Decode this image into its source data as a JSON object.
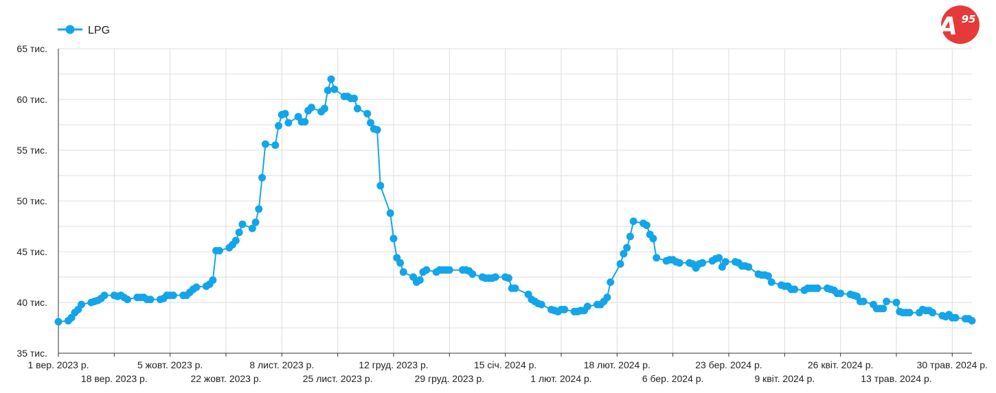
{
  "chart_data": {
    "type": "line",
    "title": "",
    "xlabel": "",
    "ylabel": "",
    "legend": {
      "position": "top-left",
      "entries": [
        "LPG"
      ]
    },
    "grid": true,
    "ylim": [
      35000,
      65000
    ],
    "xlim": [
      "2023-09-01",
      "2024-06-05"
    ],
    "y_ticks": [
      {
        "value": 35000,
        "label": "35 тис."
      },
      {
        "value": 40000,
        "label": "40 тис."
      },
      {
        "value": 45000,
        "label": "45 тис."
      },
      {
        "value": 50000,
        "label": "50 тис."
      },
      {
        "value": 55000,
        "label": "55 тис."
      },
      {
        "value": 60000,
        "label": "60 тис."
      },
      {
        "value": 65000,
        "label": "65 тис."
      }
    ],
    "x_ticks": [
      {
        "date": "2023-09-01",
        "label": "1 вер. 2023 р."
      },
      {
        "date": "2023-09-18",
        "label": "18 вер. 2023 р."
      },
      {
        "date": "2023-10-05",
        "label": "5 жовт. 2023 р."
      },
      {
        "date": "2023-10-22",
        "label": "22 жовт. 2023 р."
      },
      {
        "date": "2023-11-08",
        "label": "8 лист. 2023 р."
      },
      {
        "date": "2023-11-25",
        "label": "25 лист. 2023 р."
      },
      {
        "date": "2023-12-12",
        "label": "12 груд. 2023 р."
      },
      {
        "date": "2023-12-29",
        "label": "29 груд. 2023 р."
      },
      {
        "date": "2024-01-15",
        "label": "15 січ. 2024 р."
      },
      {
        "date": "2024-02-01",
        "label": "1 лют. 2024 р."
      },
      {
        "date": "2024-02-18",
        "label": "18 лют. 2024 р."
      },
      {
        "date": "2024-03-06",
        "label": "6 бер. 2024 р."
      },
      {
        "date": "2024-03-23",
        "label": "23 бер. 2024 р."
      },
      {
        "date": "2024-04-09",
        "label": "9 квіт. 2024 р."
      },
      {
        "date": "2024-04-26",
        "label": "26 квіт. 2024 р."
      },
      {
        "date": "2024-05-13",
        "label": "13 трав. 2024 р."
      },
      {
        "date": "2024-05-30",
        "label": "30 трав. 2024 р."
      }
    ],
    "series": [
      {
        "name": "LPG",
        "color": "#13a5ea",
        "points": [
          [
            "2023-09-01",
            38100
          ],
          [
            "2023-09-04",
            38200
          ],
          [
            "2023-09-05",
            38500
          ],
          [
            "2023-09-06",
            39000
          ],
          [
            "2023-09-07",
            39300
          ],
          [
            "2023-09-08",
            39800
          ],
          [
            "2023-09-11",
            40000
          ],
          [
            "2023-09-12",
            40100
          ],
          [
            "2023-09-13",
            40200
          ],
          [
            "2023-09-14",
            40400
          ],
          [
            "2023-09-15",
            40700
          ],
          [
            "2023-09-18",
            40700
          ],
          [
            "2023-09-19",
            40600
          ],
          [
            "2023-09-20",
            40700
          ],
          [
            "2023-09-21",
            40500
          ],
          [
            "2023-09-22",
            40300
          ],
          [
            "2023-09-25",
            40500
          ],
          [
            "2023-09-26",
            40500
          ],
          [
            "2023-09-27",
            40500
          ],
          [
            "2023-09-28",
            40300
          ],
          [
            "2023-09-29",
            40300
          ],
          [
            "2023-10-02",
            40300
          ],
          [
            "2023-10-03",
            40400
          ],
          [
            "2023-10-04",
            40700
          ],
          [
            "2023-10-05",
            40700
          ],
          [
            "2023-10-06",
            40700
          ],
          [
            "2023-10-09",
            40700
          ],
          [
            "2023-10-10",
            40700
          ],
          [
            "2023-10-11",
            41000
          ],
          [
            "2023-10-12",
            41300
          ],
          [
            "2023-10-13",
            41500
          ],
          [
            "2023-10-16",
            41600
          ],
          [
            "2023-10-17",
            41800
          ],
          [
            "2023-10-18",
            42200
          ],
          [
            "2023-10-19",
            45100
          ],
          [
            "2023-10-20",
            45100
          ],
          [
            "2023-10-23",
            45400
          ],
          [
            "2023-10-24",
            45700
          ],
          [
            "2023-10-25",
            46100
          ],
          [
            "2023-10-26",
            46900
          ],
          [
            "2023-10-27",
            47700
          ],
          [
            "2023-10-30",
            47300
          ],
          [
            "2023-10-31",
            47900
          ],
          [
            "2023-11-01",
            49200
          ],
          [
            "2023-11-02",
            52300
          ],
          [
            "2023-11-03",
            55600
          ],
          [
            "2023-11-06",
            55500
          ],
          [
            "2023-11-07",
            57400
          ],
          [
            "2023-11-08",
            58500
          ],
          [
            "2023-11-09",
            58600
          ],
          [
            "2023-11-10",
            57700
          ],
          [
            "2023-11-13",
            58300
          ],
          [
            "2023-11-14",
            57800
          ],
          [
            "2023-11-15",
            57800
          ],
          [
            "2023-11-16",
            58900
          ],
          [
            "2023-11-17",
            59200
          ],
          [
            "2023-11-20",
            58800
          ],
          [
            "2023-11-21",
            59100
          ],
          [
            "2023-11-22",
            60900
          ],
          [
            "2023-11-23",
            62000
          ],
          [
            "2023-11-24",
            61000
          ],
          [
            "2023-11-27",
            60300
          ],
          [
            "2023-11-28",
            60300
          ],
          [
            "2023-11-29",
            60100
          ],
          [
            "2023-11-30",
            60100
          ],
          [
            "2023-12-01",
            59100
          ],
          [
            "2023-12-04",
            58600
          ],
          [
            "2023-12-05",
            57700
          ],
          [
            "2023-12-06",
            57100
          ],
          [
            "2023-12-07",
            57000
          ],
          [
            "2023-12-08",
            51500
          ],
          [
            "2023-12-11",
            48800
          ],
          [
            "2023-12-12",
            46300
          ],
          [
            "2023-12-13",
            44400
          ],
          [
            "2023-12-14",
            43900
          ],
          [
            "2023-12-15",
            43000
          ],
          [
            "2023-12-18",
            42500
          ],
          [
            "2023-12-19",
            42000
          ],
          [
            "2023-12-20",
            42200
          ],
          [
            "2023-12-21",
            43000
          ],
          [
            "2023-12-22",
            43200
          ],
          [
            "2023-12-25",
            43000
          ],
          [
            "2023-12-26",
            43200
          ],
          [
            "2023-12-27",
            43200
          ],
          [
            "2023-12-28",
            43200
          ],
          [
            "2023-12-29",
            43200
          ],
          [
            "2024-01-02",
            43200
          ],
          [
            "2024-01-03",
            43200
          ],
          [
            "2024-01-04",
            43100
          ],
          [
            "2024-01-05",
            42800
          ],
          [
            "2024-01-08",
            42500
          ],
          [
            "2024-01-09",
            42400
          ],
          [
            "2024-01-10",
            42400
          ],
          [
            "2024-01-11",
            42400
          ],
          [
            "2024-01-12",
            42500
          ],
          [
            "2024-01-15",
            42500
          ],
          [
            "2024-01-16",
            42400
          ],
          [
            "2024-01-17",
            41400
          ],
          [
            "2024-01-18",
            41400
          ],
          [
            "2024-01-22",
            40800
          ],
          [
            "2024-01-23",
            40300
          ],
          [
            "2024-01-24",
            40100
          ],
          [
            "2024-01-25",
            39900
          ],
          [
            "2024-01-26",
            39800
          ],
          [
            "2024-01-29",
            39300
          ],
          [
            "2024-01-30",
            39200
          ],
          [
            "2024-01-31",
            39100
          ],
          [
            "2024-02-01",
            39300
          ],
          [
            "2024-02-02",
            39300
          ],
          [
            "2024-02-05",
            39100
          ],
          [
            "2024-02-06",
            39100
          ],
          [
            "2024-02-07",
            39200
          ],
          [
            "2024-02-08",
            39200
          ],
          [
            "2024-02-09",
            39600
          ],
          [
            "2024-02-12",
            39800
          ],
          [
            "2024-02-13",
            39800
          ],
          [
            "2024-02-14",
            40100
          ],
          [
            "2024-02-15",
            40500
          ],
          [
            "2024-02-16",
            42000
          ],
          [
            "2024-02-19",
            43800
          ],
          [
            "2024-02-20",
            44800
          ],
          [
            "2024-02-21",
            45400
          ],
          [
            "2024-02-22",
            46500
          ],
          [
            "2024-02-23",
            48000
          ],
          [
            "2024-02-26",
            47800
          ],
          [
            "2024-02-27",
            47600
          ],
          [
            "2024-02-28",
            46700
          ],
          [
            "2024-02-29",
            46300
          ],
          [
            "2024-03-01",
            44400
          ],
          [
            "2024-03-04",
            44100
          ],
          [
            "2024-03-05",
            44200
          ],
          [
            "2024-03-06",
            44200
          ],
          [
            "2024-03-07",
            44000
          ],
          [
            "2024-03-08",
            43900
          ],
          [
            "2024-03-11",
            43900
          ],
          [
            "2024-03-12",
            43800
          ],
          [
            "2024-03-13",
            43400
          ],
          [
            "2024-03-14",
            43800
          ],
          [
            "2024-03-15",
            43900
          ],
          [
            "2024-03-18",
            44100
          ],
          [
            "2024-03-19",
            44300
          ],
          [
            "2024-03-20",
            44400
          ],
          [
            "2024-03-21",
            43500
          ],
          [
            "2024-03-22",
            44000
          ],
          [
            "2024-03-25",
            44000
          ],
          [
            "2024-03-26",
            43900
          ],
          [
            "2024-03-27",
            43600
          ],
          [
            "2024-03-28",
            43600
          ],
          [
            "2024-03-29",
            43500
          ],
          [
            "2024-04-01",
            42800
          ],
          [
            "2024-04-02",
            42700
          ],
          [
            "2024-04-03",
            42700
          ],
          [
            "2024-04-04",
            42600
          ],
          [
            "2024-04-05",
            42000
          ],
          [
            "2024-04-08",
            41700
          ],
          [
            "2024-04-09",
            41600
          ],
          [
            "2024-04-10",
            41600
          ],
          [
            "2024-04-11",
            41300
          ],
          [
            "2024-04-12",
            41300
          ],
          [
            "2024-04-15",
            41200
          ],
          [
            "2024-04-16",
            41400
          ],
          [
            "2024-04-17",
            41400
          ],
          [
            "2024-04-18",
            41400
          ],
          [
            "2024-04-19",
            41400
          ],
          [
            "2024-04-22",
            41400
          ],
          [
            "2024-04-23",
            41300
          ],
          [
            "2024-04-24",
            41200
          ],
          [
            "2024-04-25",
            40900
          ],
          [
            "2024-04-26",
            40900
          ],
          [
            "2024-04-29",
            40800
          ],
          [
            "2024-04-30",
            40700
          ],
          [
            "2024-05-01",
            40600
          ],
          [
            "2024-05-02",
            40100
          ],
          [
            "2024-05-03",
            40100
          ],
          [
            "2024-05-06",
            39800
          ],
          [
            "2024-05-07",
            39400
          ],
          [
            "2024-05-08",
            39400
          ],
          [
            "2024-05-09",
            39400
          ],
          [
            "2024-05-10",
            40100
          ],
          [
            "2024-05-13",
            40000
          ],
          [
            "2024-05-14",
            39100
          ],
          [
            "2024-05-15",
            39000
          ],
          [
            "2024-05-16",
            39000
          ],
          [
            "2024-05-17",
            39000
          ],
          [
            "2024-05-20",
            39000
          ],
          [
            "2024-05-21",
            39300
          ],
          [
            "2024-05-22",
            39200
          ],
          [
            "2024-05-23",
            39200
          ],
          [
            "2024-05-24",
            39000
          ],
          [
            "2024-05-27",
            38700
          ],
          [
            "2024-05-28",
            38600
          ],
          [
            "2024-05-29",
            38800
          ],
          [
            "2024-05-30",
            38500
          ],
          [
            "2024-05-31",
            38500
          ],
          [
            "2024-06-03",
            38400
          ],
          [
            "2024-06-04",
            38400
          ],
          [
            "2024-06-05",
            38200
          ]
        ]
      }
    ]
  },
  "logo": {
    "text": "A95",
    "color": "#e63a3a"
  }
}
